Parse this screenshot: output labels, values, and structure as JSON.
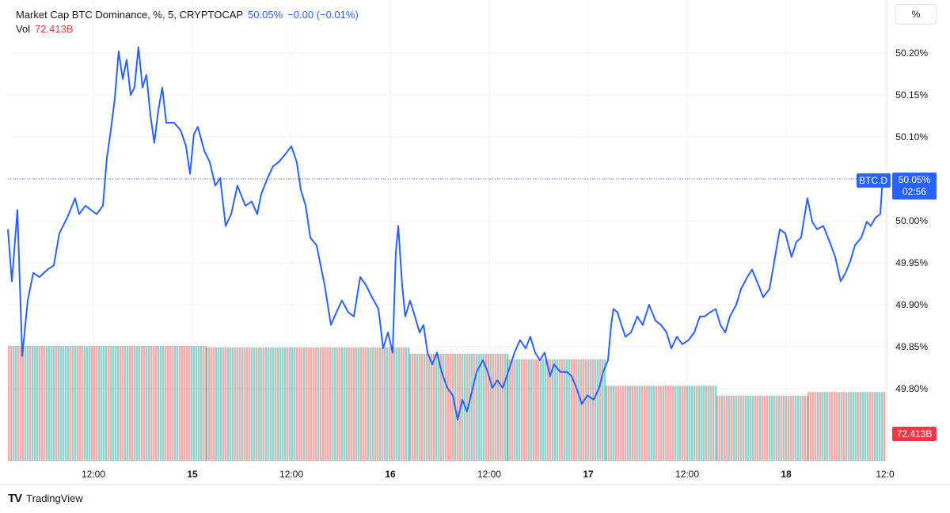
{
  "legend": {
    "title": "Market Cap BTC Dominance, %, 5, CRYPTOCAP",
    "last": "50.05%",
    "change": "−0.00 (−0.01%)",
    "vol_label": "Vol",
    "vol_value": "72.413B"
  },
  "scale_button": "%",
  "logo_text": "TradingView",
  "colors": {
    "line": "#2962ff",
    "up": "#26a69a",
    "down": "#ef5350",
    "grid": "#f0f3fa",
    "text": "#131722"
  },
  "chart_data": {
    "type": "line",
    "symbol_tag": "BTC.D",
    "last_price_label": "50.05%",
    "countdown": "02:56",
    "volume_label": "72.413B",
    "y_ticks": [
      "50.20%",
      "50.15%",
      "50.10%",
      "50.05%",
      "50.00%",
      "49.95%",
      "49.90%",
      "49.85%",
      "49.80%"
    ],
    "y_tick_values": [
      50.2,
      50.15,
      50.1,
      50.05,
      50.0,
      49.95,
      49.9,
      49.85,
      49.8
    ],
    "x_ticks": [
      {
        "label": "12:00",
        "t": "14 12:00"
      },
      {
        "label": "15",
        "t": "15 00:00"
      },
      {
        "label": "12:00",
        "t": "15 12:00"
      },
      {
        "label": "16",
        "t": "16 00:00"
      },
      {
        "label": "12:00",
        "t": "16 12:00"
      },
      {
        "label": "17",
        "t": "17 00:00"
      },
      {
        "label": "12:00",
        "t": "17 12:00"
      },
      {
        "label": "18",
        "t": "18 00:00"
      },
      {
        "label": "12:0",
        "t": "18 12:00"
      }
    ],
    "series": [
      {
        "values": [
          [
            "14 01:38",
            49.99
          ],
          [
            "14 02:07",
            49.928
          ],
          [
            "14 02:47",
            50.013
          ],
          [
            "14 03:22",
            49.839
          ],
          [
            "14 04:02",
            49.905
          ],
          [
            "14 04:42",
            49.938
          ],
          [
            "14 05:28",
            49.933
          ],
          [
            "14 06:26",
            49.942
          ],
          [
            "14 07:12",
            49.947
          ],
          [
            "14 07:52",
            49.985
          ],
          [
            "14 08:50",
            50.004
          ],
          [
            "14 09:47",
            50.027
          ],
          [
            "14 10:16",
            50.008
          ],
          [
            "14 11:02",
            50.018
          ],
          [
            "14 11:43",
            50.013
          ],
          [
            "14 12:23",
            50.008
          ],
          [
            "14 13:09",
            50.018
          ],
          [
            "14 13:38",
            50.075
          ],
          [
            "14 14:07",
            50.108
          ],
          [
            "14 14:35",
            50.145
          ],
          [
            "14 15:04",
            50.202
          ],
          [
            "14 15:33",
            50.169
          ],
          [
            "14 16:02",
            50.192
          ],
          [
            "14 16:31",
            50.15
          ],
          [
            "14 16:59",
            50.159
          ],
          [
            "14 17:28",
            50.207
          ],
          [
            "14 17:57",
            50.159
          ],
          [
            "14 18:26",
            50.174
          ],
          [
            "14 18:55",
            50.126
          ],
          [
            "14 19:23",
            50.093
          ],
          [
            "14 19:52",
            50.131
          ],
          [
            "14 20:21",
            50.159
          ],
          [
            "14 20:50",
            50.117
          ],
          [
            "14 21:47",
            50.117
          ],
          [
            "14 22:34",
            50.108
          ],
          [
            "14 23:14",
            50.089
          ],
          [
            "14 23:43",
            50.056
          ],
          [
            "15 00:11",
            50.103
          ],
          [
            "15 00:40",
            50.112
          ],
          [
            "15 01:26",
            50.084
          ],
          [
            "15 02:07",
            50.07
          ],
          [
            "15 02:47",
            50.042
          ],
          [
            "15 03:22",
            50.051
          ],
          [
            "15 04:02",
            49.994
          ],
          [
            "15 04:42",
            50.008
          ],
          [
            "15 05:28",
            50.042
          ],
          [
            "15 06:26",
            50.018
          ],
          [
            "15 07:12",
            50.023
          ],
          [
            "15 07:52",
            50.008
          ],
          [
            "15 08:21",
            50.032
          ],
          [
            "15 09:07",
            50.051
          ],
          [
            "15 09:47",
            50.065
          ],
          [
            "15 10:28",
            50.07
          ],
          [
            "15 11:14",
            50.079
          ],
          [
            "15 12:00",
            50.089
          ],
          [
            "15 12:40",
            50.07
          ],
          [
            "15 13:09",
            50.037
          ],
          [
            "15 13:44",
            50.018
          ],
          [
            "15 14:18",
            49.98
          ],
          [
            "15 15:04",
            49.971
          ],
          [
            "15 15:33",
            49.947
          ],
          [
            "15 16:02",
            49.924
          ],
          [
            "15 16:48",
            49.876
          ],
          [
            "15 17:28",
            49.891
          ],
          [
            "15 18:08",
            49.905
          ],
          [
            "15 18:55",
            49.891
          ],
          [
            "15 19:35",
            49.886
          ],
          [
            "15 20:21",
            49.933
          ],
          [
            "15 21:01",
            49.924
          ],
          [
            "15 21:47",
            49.909
          ],
          [
            "15 22:34",
            49.895
          ],
          [
            "15 23:08",
            49.848
          ],
          [
            "15 23:43",
            49.867
          ],
          [
            "16 00:17",
            49.843
          ],
          [
            "16 00:40",
            49.961
          ],
          [
            "16 00:58",
            49.994
          ],
          [
            "16 01:26",
            49.924
          ],
          [
            "16 01:49",
            49.886
          ],
          [
            "16 02:24",
            49.905
          ],
          [
            "16 02:59",
            49.886
          ],
          [
            "16 03:33",
            49.867
          ],
          [
            "16 04:02",
            49.876
          ],
          [
            "16 04:31",
            49.843
          ],
          [
            "16 05:05",
            49.829
          ],
          [
            "16 05:40",
            49.843
          ],
          [
            "16 06:14",
            49.82
          ],
          [
            "16 06:55",
            49.801
          ],
          [
            "16 07:35",
            49.792
          ],
          [
            "16 08:10",
            49.763
          ],
          [
            "16 08:44",
            49.787
          ],
          [
            "16 09:19",
            49.773
          ],
          [
            "16 09:53",
            49.796
          ],
          [
            "16 10:28",
            49.82
          ],
          [
            "16 11:14",
            49.834
          ],
          [
            "16 11:49",
            49.82
          ],
          [
            "16 12:23",
            49.801
          ],
          [
            "16 12:58",
            49.81
          ],
          [
            "16 13:38",
            49.801
          ],
          [
            "16 14:18",
            49.82
          ],
          [
            "16 15:04",
            49.843
          ],
          [
            "16 15:44",
            49.858
          ],
          [
            "16 16:25",
            49.848
          ],
          [
            "16 16:59",
            49.862
          ],
          [
            "16 17:34",
            49.843
          ],
          [
            "16 18:08",
            49.834
          ],
          [
            "16 18:43",
            49.843
          ],
          [
            "16 19:23",
            49.815
          ],
          [
            "16 19:52",
            49.829
          ],
          [
            "16 20:38",
            49.82
          ],
          [
            "16 21:25",
            49.82
          ],
          [
            "16 21:59",
            49.815
          ],
          [
            "16 22:34",
            49.801
          ],
          [
            "16 23:14",
            49.782
          ],
          [
            "16 23:54",
            49.792
          ],
          [
            "17 00:40",
            49.787
          ],
          [
            "17 01:20",
            49.801
          ],
          [
            "17 01:49",
            49.82
          ],
          [
            "17 02:24",
            49.834
          ],
          [
            "17 02:47",
            49.876
          ],
          [
            "17 03:04",
            49.895
          ],
          [
            "17 03:33",
            49.891
          ],
          [
            "17 04:02",
            49.876
          ],
          [
            "17 04:31",
            49.862
          ],
          [
            "17 05:11",
            49.867
          ],
          [
            "17 05:57",
            49.886
          ],
          [
            "17 06:37",
            49.876
          ],
          [
            "17 07:23",
            49.9
          ],
          [
            "17 08:10",
            49.881
          ],
          [
            "17 08:50",
            49.876
          ],
          [
            "17 09:30",
            49.867
          ],
          [
            "17 10:05",
            49.848
          ],
          [
            "17 10:45",
            49.862
          ],
          [
            "17 11:25",
            49.853
          ],
          [
            "17 12:11",
            49.858
          ],
          [
            "17 12:52",
            49.867
          ],
          [
            "17 13:32",
            49.886
          ],
          [
            "17 14:07",
            49.886
          ],
          [
            "17 14:47",
            49.891
          ],
          [
            "17 15:28",
            49.895
          ],
          [
            "17 16:02",
            49.876
          ],
          [
            "17 16:37",
            49.867
          ],
          [
            "17 17:11",
            49.886
          ],
          [
            "17 17:57",
            49.9
          ],
          [
            "17 18:32",
            49.919
          ],
          [
            "17 19:18",
            49.933
          ],
          [
            "17 19:52",
            49.942
          ],
          [
            "17 20:38",
            49.924
          ],
          [
            "17 21:13",
            49.909
          ],
          [
            "17 21:59",
            49.919
          ],
          [
            "17 22:34",
            49.952
          ],
          [
            "17 23:14",
            49.99
          ],
          [
            "17 23:54",
            49.985
          ],
          [
            "18 00:40",
            49.957
          ],
          [
            "18 01:15",
            49.975
          ],
          [
            "18 01:49",
            49.98
          ],
          [
            "18 02:35",
            50.027
          ],
          [
            "18 03:10",
            49.999
          ],
          [
            "18 03:44",
            49.99
          ],
          [
            "18 04:31",
            49.994
          ],
          [
            "18 05:17",
            49.975
          ],
          [
            "18 05:57",
            49.957
          ],
          [
            "18 06:37",
            49.928
          ],
          [
            "18 07:12",
            49.938
          ],
          [
            "18 07:47",
            49.952
          ],
          [
            "18 08:21",
            49.971
          ],
          [
            "18 09:07",
            49.98
          ],
          [
            "18 09:47",
            49.999
          ],
          [
            "18 10:16",
            49.994
          ],
          [
            "18 10:51",
            50.004
          ],
          [
            "18 11:25",
            50.008
          ],
          [
            "18 11:43",
            50.05
          ]
        ]
      }
    ],
    "volume_segments_B": [
      {
        "from": "14 01:38",
        "to": "15 01:38",
        "value": 309
      },
      {
        "from": "15 01:38",
        "to": "16 02:18",
        "value": 305
      },
      {
        "from": "16 02:18",
        "to": "16 14:07",
        "value": 288
      },
      {
        "from": "16 14:07",
        "to": "17 02:07",
        "value": 273
      },
      {
        "from": "17 02:07",
        "to": "17 15:32",
        "value": 202
      },
      {
        "from": "17 15:32",
        "to": "18 02:35",
        "value": 175
      },
      {
        "from": "18 02:35",
        "to": "18 12:00",
        "value": 185
      }
    ],
    "ylim": [
      49.7,
      50.3
    ],
    "grid": true
  }
}
